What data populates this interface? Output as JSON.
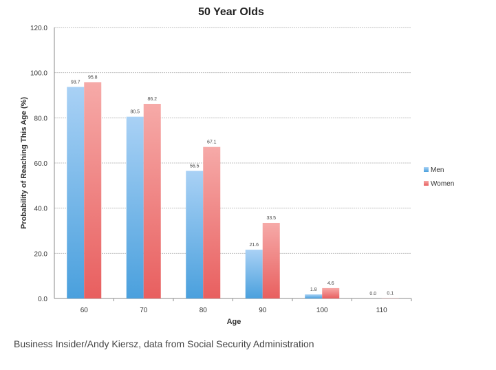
{
  "chart_data": {
    "type": "bar",
    "title": "50 Year Olds",
    "xlabel": "Age",
    "ylabel": "Probability of Reaching This Age (%)",
    "ylim": [
      0,
      120
    ],
    "yticks": [
      "0.0",
      "20.0",
      "40.0",
      "60.0",
      "80.0",
      "100.0",
      "120.0"
    ],
    "categories": [
      "60",
      "70",
      "80",
      "90",
      "100",
      "110"
    ],
    "series": [
      {
        "name": "Men",
        "values": [
          93.7,
          80.5,
          56.5,
          21.6,
          1.8,
          0.0
        ],
        "labels": [
          "93.7",
          "80.5",
          "56.5",
          "21.6",
          "1.8",
          "0.0"
        ],
        "color": "#7db8ec"
      },
      {
        "name": "Women",
        "values": [
          95.8,
          86.2,
          67.1,
          33.5,
          4.6,
          0.1
        ],
        "labels": [
          "95.8",
          "86.2",
          "67.1",
          "33.5",
          "4.6",
          "0.1"
        ],
        "color": "#f08a8a"
      }
    ],
    "grid": true,
    "legend_position": "right"
  },
  "caption": "Business Insider/Andy Kiersz, data from Social Security Administration"
}
